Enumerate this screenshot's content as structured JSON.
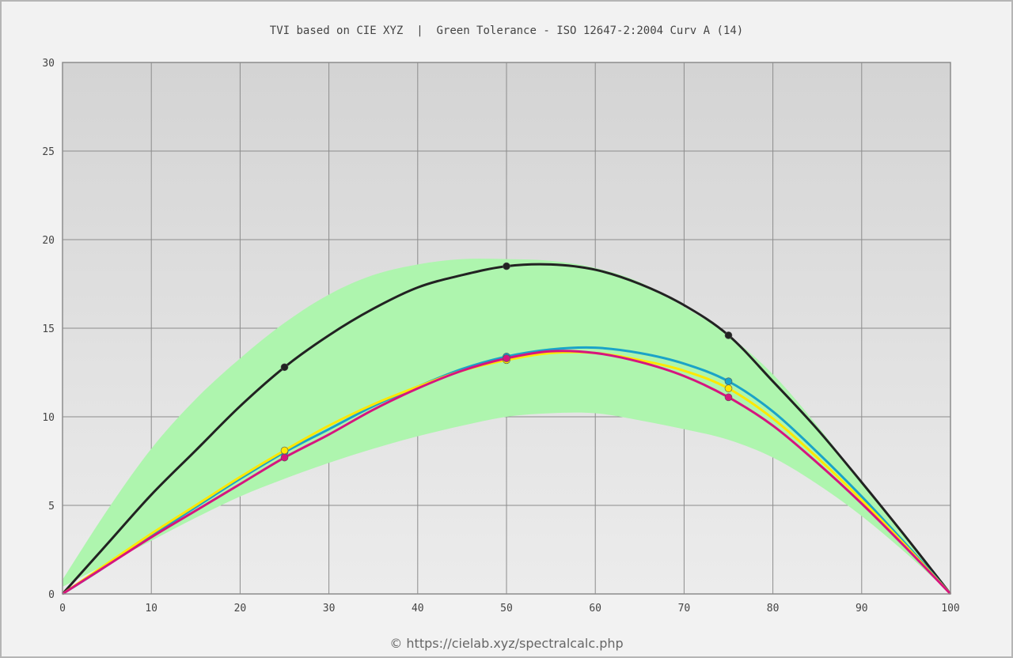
{
  "chart_data": {
    "type": "line",
    "title": "TVI based on CIE XYZ  |  Green Tolerance - ISO 12647-2:2004 Curv A (14)",
    "xlabel": "",
    "ylabel": "",
    "xlim": [
      0,
      100
    ],
    "ylim": [
      0,
      30
    ],
    "x_ticks": [
      "0",
      "10",
      "20",
      "30",
      "40",
      "50",
      "60",
      "70",
      "80",
      "90",
      "100"
    ],
    "y_ticks": [
      "0",
      "5",
      "10",
      "15",
      "20",
      "25",
      "30"
    ],
    "grid": true,
    "tolerance_band": {
      "color": "#aef5ae",
      "x": [
        0,
        5,
        10,
        15,
        20,
        25,
        30,
        35,
        40,
        45,
        50,
        55,
        60,
        65,
        70,
        75,
        80,
        85,
        90,
        95,
        100
      ],
      "upper": [
        0.8,
        4.7,
        8.2,
        11.0,
        13.3,
        15.3,
        16.9,
        18.0,
        18.6,
        18.9,
        18.9,
        18.8,
        18.4,
        17.6,
        16.2,
        14.6,
        12.4,
        9.5,
        6.3,
        3.2,
        0
      ],
      "lower": [
        0.4,
        1.7,
        3.0,
        4.3,
        5.5,
        6.5,
        7.4,
        8.2,
        8.9,
        9.5,
        10.0,
        10.2,
        10.2,
        9.8,
        9.3,
        8.7,
        7.7,
        6.2,
        4.4,
        2.3,
        0
      ]
    },
    "series": [
      {
        "color": "#222222",
        "x": [
          0,
          5,
          10,
          15,
          20,
          25,
          30,
          35,
          40,
          45,
          50,
          55,
          60,
          65,
          70,
          75,
          80,
          85,
          90,
          95,
          100
        ],
        "values": [
          0,
          2.8,
          5.6,
          8.1,
          10.6,
          12.8,
          14.6,
          16.1,
          17.3,
          18.0,
          18.5,
          18.6,
          18.3,
          17.5,
          16.3,
          14.6,
          12.0,
          9.3,
          6.3,
          3.2,
          0
        ],
        "markers_x": [
          25,
          50,
          75
        ],
        "markers_y": [
          12.8,
          18.5,
          14.6
        ]
      },
      {
        "color": "#1aa3c8",
        "x": [
          0,
          5,
          10,
          15,
          20,
          25,
          30,
          35,
          40,
          45,
          50,
          55,
          60,
          65,
          70,
          75,
          80,
          85,
          90,
          95,
          100
        ],
        "values": [
          0,
          1.6,
          3.3,
          4.9,
          6.5,
          8.0,
          9.3,
          10.6,
          11.7,
          12.7,
          13.4,
          13.8,
          13.9,
          13.6,
          13.0,
          12.0,
          10.3,
          8.0,
          5.5,
          2.8,
          0
        ],
        "markers_x": [
          25,
          50,
          75
        ],
        "markers_y": [
          8.0,
          13.4,
          12.0
        ]
      },
      {
        "color": "#ffe800",
        "x": [
          0,
          5,
          10,
          15,
          20,
          25,
          30,
          35,
          40,
          45,
          50,
          55,
          60,
          65,
          70,
          75,
          80,
          85,
          90,
          95,
          100
        ],
        "values": [
          0,
          1.7,
          3.4,
          5.0,
          6.6,
          8.1,
          9.5,
          10.7,
          11.7,
          12.6,
          13.2,
          13.6,
          13.6,
          13.2,
          12.6,
          11.6,
          9.9,
          7.7,
          5.3,
          2.7,
          0
        ],
        "markers_x": [
          25,
          50,
          75
        ],
        "markers_y": [
          8.1,
          13.2,
          11.6
        ]
      },
      {
        "color": "#d6157f",
        "x": [
          0,
          5,
          10,
          15,
          20,
          25,
          30,
          35,
          40,
          45,
          50,
          55,
          60,
          65,
          70,
          75,
          80,
          85,
          90,
          95,
          100
        ],
        "values": [
          0,
          1.6,
          3.2,
          4.7,
          6.2,
          7.7,
          9.0,
          10.4,
          11.6,
          12.6,
          13.3,
          13.7,
          13.6,
          13.1,
          12.3,
          11.1,
          9.5,
          7.4,
          5.1,
          2.6,
          0
        ],
        "markers_x": [
          25,
          50,
          75
        ],
        "markers_y": [
          7.7,
          13.3,
          11.1
        ]
      }
    ],
    "colors": {
      "plot_top": "#d4d4d4",
      "plot_bottom": "#ececec",
      "grid": "#8c8c8c"
    }
  },
  "footer": {
    "text": "© https://cielab.xyz/spectralcalc.php"
  }
}
